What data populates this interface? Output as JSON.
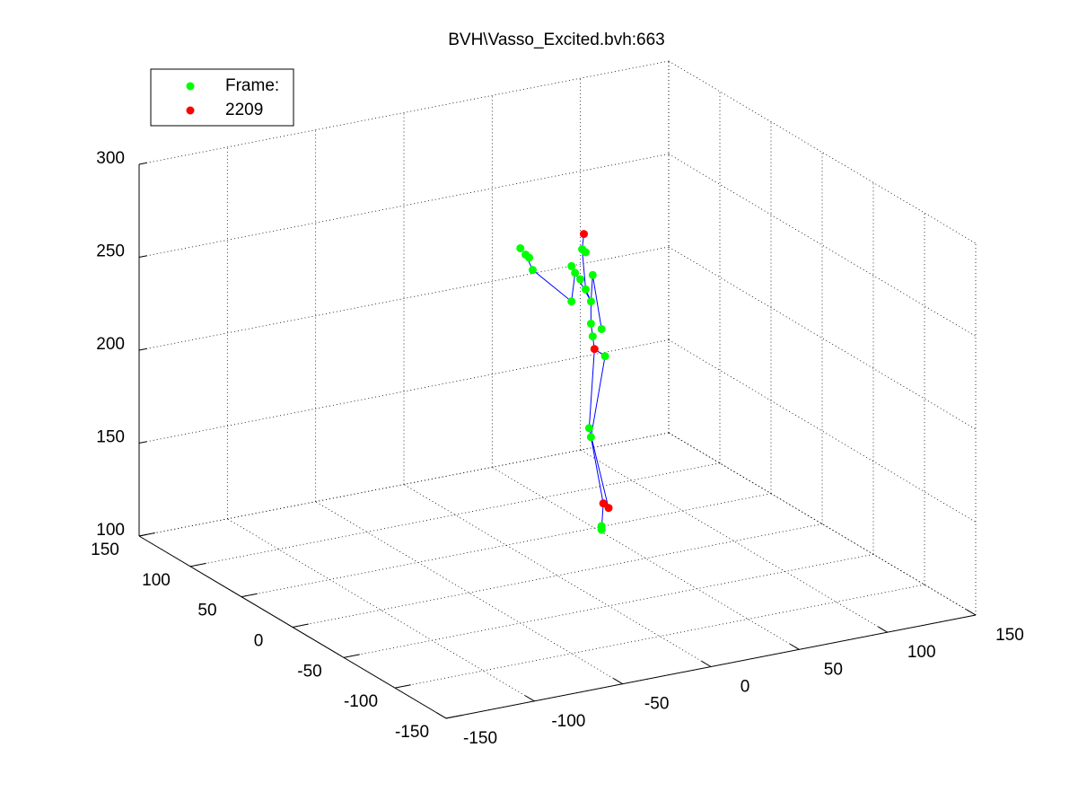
{
  "chart_data": {
    "type": "scatter3",
    "title": "BVH\\Vasso_Excited.bvh:663",
    "xlim": [
      -150,
      150
    ],
    "xticks": [
      -150,
      -100,
      -50,
      0,
      50,
      100,
      150
    ],
    "ylim": [
      -150,
      150
    ],
    "yticks": [
      -150,
      -100,
      -50,
      0,
      50,
      100,
      150
    ],
    "zlim": [
      100,
      300
    ],
    "zticks": [
      100,
      150,
      200,
      250,
      300
    ],
    "grid": true,
    "legend": "top-left",
    "series": [
      {
        "name": "Frame:",
        "color": "#00ff00",
        "mode": "markers",
        "x": [
          25,
          25,
          19,
          18,
          27,
          20,
          19,
          25,
          19,
          20,
          16,
          13,
          14,
          16,
          8,
          10,
          8,
          -14,
          -21,
          -18,
          -16
        ],
        "y": [
          0,
          0,
          0,
          0,
          0,
          0,
          0,
          0,
          0,
          0,
          0,
          0,
          0,
          0,
          0,
          0,
          0,
          0,
          0,
          0,
          0
        ],
        "z": [
          120,
          122,
          171,
          176,
          213,
          225,
          232,
          228,
          244,
          258,
          251,
          257,
          273,
          271,
          265,
          261,
          246,
          267,
          280,
          276,
          274
        ]
      },
      {
        "name": "2209",
        "color": "#ff0000",
        "mode": "markers",
        "x": [
          15,
          21,
          26,
          29
        ],
        "y": [
          0,
          0,
          0,
          0
        ],
        "z": [
          281,
          218,
          134,
          131
        ]
      },
      {
        "color": "#0000ff",
        "mode": "line",
        "x": [
          25,
          26,
          19,
          27,
          21,
          20,
          19,
          19,
          16,
          14,
          15,
          null,
          19,
          10,
          8,
          -14,
          -18,
          null,
          19,
          20,
          25,
          null,
          29,
          18,
          21
        ],
        "y": [
          0,
          0,
          0,
          0,
          0,
          0,
          0,
          0,
          0,
          0,
          0,
          null,
          0,
          0,
          0,
          0,
          0,
          null,
          0,
          0,
          0,
          null,
          0,
          0,
          0
        ],
        "z": [
          120,
          134,
          171,
          213,
          218,
          225,
          232,
          244,
          251,
          273,
          281,
          null,
          244,
          261,
          246,
          267,
          276,
          null,
          244,
          258,
          228,
          null,
          131,
          176,
          218
        ]
      }
    ]
  }
}
